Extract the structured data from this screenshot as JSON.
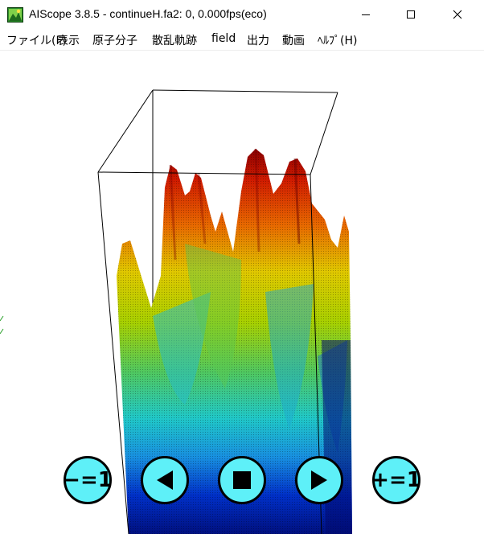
{
  "window": {
    "title": "AIScope 3.8.5 - continueH.fa2: 0, 0.000fps(eco)"
  },
  "menu": {
    "items": [
      {
        "label": "ファイル(F)"
      },
      {
        "label": "表示"
      },
      {
        "label": "原子分子"
      },
      {
        "label": "散乱軌跡"
      },
      {
        "label": "field"
      },
      {
        "label": "出力"
      },
      {
        "label": "動画"
      },
      {
        "label": "ﾍﾙﾌﾟ(H)"
      }
    ]
  },
  "controls": {
    "decrement_label": "−=1",
    "increment_label": "+=1"
  },
  "colors": {
    "button_fill": "#5ef0f8",
    "peak_red": "#b40000",
    "base_blue": "#0010a0"
  },
  "icons": [
    "app-icon",
    "minimize-icon",
    "maximize-icon",
    "close-icon",
    "step-back-icon",
    "stop-icon",
    "play-icon"
  ]
}
